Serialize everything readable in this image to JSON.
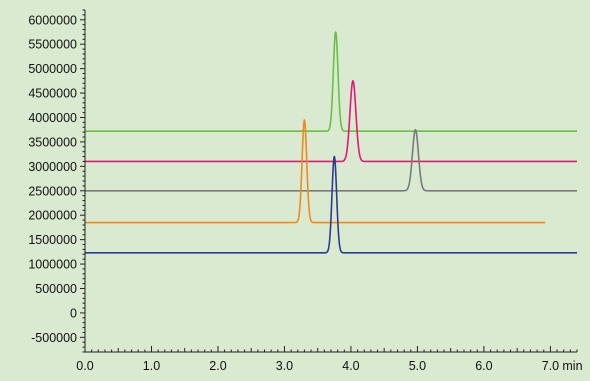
{
  "chart_data": {
    "type": "line",
    "title": "",
    "xlabel": "",
    "ylabel": "",
    "x_unit": "min",
    "xlim": [
      0,
      7.4
    ],
    "ylim": [
      -800000,
      6200000
    ],
    "x_ticks": [
      "0.0",
      "1.0",
      "2.0",
      "3.0",
      "4.0",
      "5.0",
      "6.0",
      "7.0"
    ],
    "y_ticks": [
      "-500000",
      "0",
      "500000",
      "1000000",
      "1500000",
      "2000000",
      "2500000",
      "3000000",
      "3500000",
      "4000000",
      "4500000",
      "5000000",
      "5500000",
      "6000000"
    ],
    "grid": false,
    "legend": "none",
    "series": [
      {
        "color": "#6abf45",
        "baseline": 3720000,
        "peak_x": 3.77,
        "peak_y": 5750000,
        "width": 0.035,
        "x_start": 0.0,
        "x_end": 7.4
      },
      {
        "color": "#e6157a",
        "baseline": 3100000,
        "peak_x": 4.03,
        "peak_y": 4750000,
        "width": 0.045,
        "x_start": 0.0,
        "x_end": 7.4
      },
      {
        "color": "#7a7a7a",
        "baseline": 2500000,
        "peak_x": 4.97,
        "peak_y": 3750000,
        "width": 0.045,
        "x_start": 0.0,
        "x_end": 7.4
      },
      {
        "color": "#f08a1c",
        "baseline": 1850000,
        "peak_x": 3.3,
        "peak_y": 3950000,
        "width": 0.035,
        "x_start": 0.0,
        "x_end": 6.92
      },
      {
        "color": "#2e3a92",
        "baseline": 1230000,
        "peak_x": 3.75,
        "peak_y": 3200000,
        "width": 0.035,
        "x_start": 0.0,
        "x_end": 7.4
      }
    ]
  }
}
